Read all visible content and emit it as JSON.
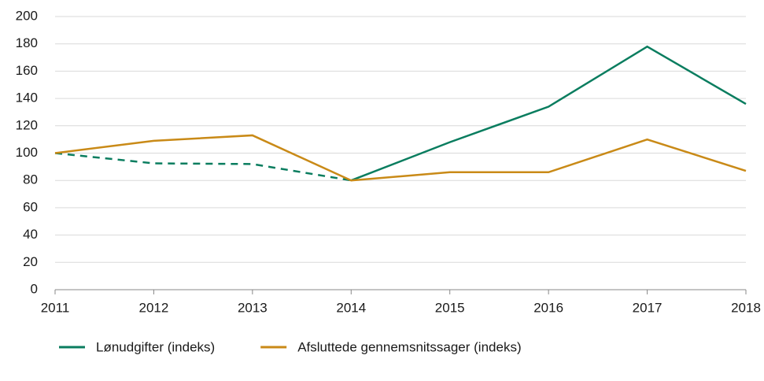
{
  "chart_data": {
    "type": "line",
    "x": [
      2011,
      2012,
      2013,
      2014,
      2015,
      2016,
      2017,
      2018
    ],
    "xlim": [
      2011,
      2018
    ],
    "xticks": [
      2011,
      2012,
      2013,
      2014,
      2015,
      2016,
      2017,
      2018
    ],
    "ylim": [
      0,
      200
    ],
    "yticks": [
      0,
      20,
      40,
      60,
      80,
      100,
      120,
      140,
      160,
      180,
      200
    ],
    "grid": true,
    "series": [
      {
        "name": "Lønudgifter (indeks)",
        "color": "#0a7d5f",
        "dash_until_x": 2014,
        "values": [
          100,
          92.5,
          92,
          80,
          108,
          134,
          178,
          136
        ]
      },
      {
        "name": "Afsluttede gennemsnitssager (indeks)",
        "color": "#c98a17",
        "values": [
          100,
          109,
          113,
          80,
          86,
          86,
          110,
          87
        ]
      }
    ]
  }
}
